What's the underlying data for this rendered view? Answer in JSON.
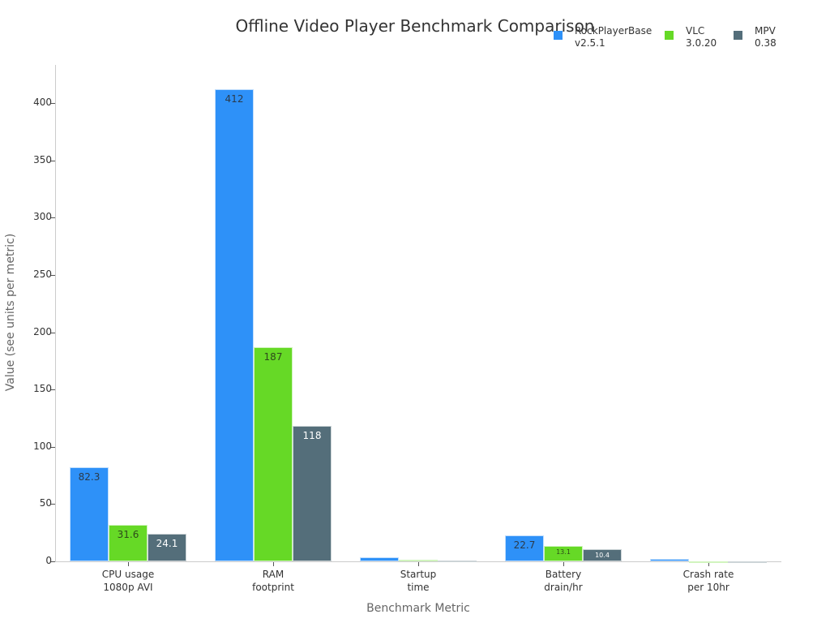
{
  "chart_data": {
    "type": "bar",
    "title": "Offline Video Player Benchmark Comparison",
    "xlabel": "Benchmark Metric",
    "ylabel": "Value (see units per metric)",
    "ylim": [
      0,
      430
    ],
    "yticks": [
      0,
      50,
      100,
      150,
      200,
      250,
      300,
      350,
      400
    ],
    "grid": false,
    "legend_position": "top-right",
    "categories": [
      "CPU usage\n1080p AVI",
      "RAM\nfootprint",
      "Startup\ntime",
      "Battery\ndrain/hr",
      "Crash rate\nper 10hr"
    ],
    "series": [
      {
        "name": "RockPlayerBase v2.5.1",
        "legend_line1": "RockPlayerBase",
        "legend_line2": "v2.5.1",
        "color": "#2e91f8",
        "label_color": "#2b3a4a",
        "values": [
          82.3,
          412,
          3.4,
          22.7,
          1.8
        ]
      },
      {
        "name": "VLC 3.0.20",
        "legend_line1": "VLC",
        "legend_line2": "3.0.20",
        "color": "#66d926",
        "label_color": "#2d4a1a",
        "values": [
          31.6,
          187,
          1.2,
          13.1,
          0.2
        ]
      },
      {
        "name": "MPV 0.38",
        "legend_line1": "MPV",
        "legend_line2": "0.38",
        "color": "#546e7a",
        "label_color": "#ffffff",
        "values": [
          24.1,
          118,
          0.8,
          10.4,
          0.1
        ]
      }
    ],
    "bar_labels": [
      [
        "82.3",
        "412",
        "3.4",
        "22.7",
        "1.8"
      ],
      [
        "31.6",
        "187",
        "1.2",
        "13.1",
        ""
      ],
      [
        "24.1",
        "118",
        "",
        "10.4",
        ""
      ]
    ]
  }
}
